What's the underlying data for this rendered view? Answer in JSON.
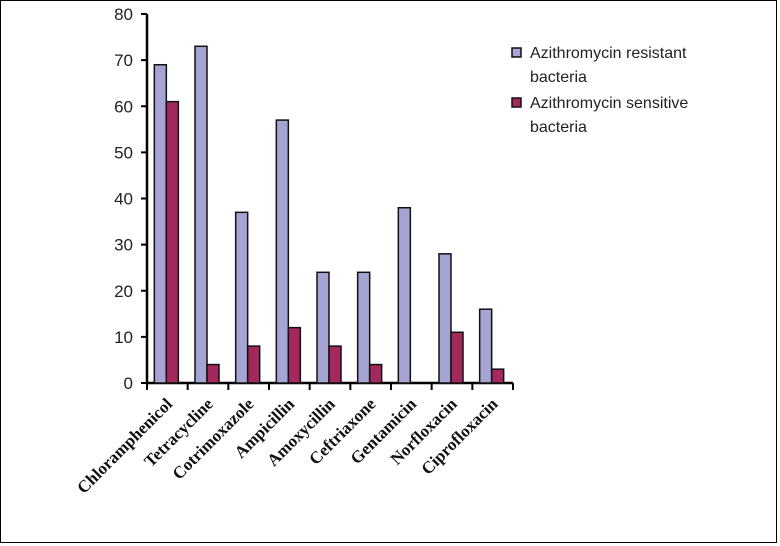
{
  "chart_data": {
    "type": "bar",
    "title": "",
    "xlabel": "",
    "ylabel": "",
    "categories": [
      "Chloramphenicol",
      "Tetracycline",
      "Cotrimoxazole",
      "Ampicillin",
      "Amoxycillin",
      "Ceftriaxone",
      "Gentamicin",
      "Norfloxacin",
      "Ciprofloxacin"
    ],
    "series": [
      {
        "name": "Azithromycin resistant bacteria",
        "legend_lines": [
          "Azithromycin resistant",
          "bacteria"
        ],
        "color": "#a6a4d2",
        "values": [
          69,
          73,
          37,
          57,
          24,
          24,
          38,
          28,
          16
        ]
      },
      {
        "name": "Azithromycin sensitive bacteria",
        "legend_lines": [
          "Azithromycin sensitive",
          "bacteria"
        ],
        "color": "#a3285c",
        "values": [
          61,
          4,
          8,
          12,
          8,
          4,
          0,
          11,
          3
        ]
      }
    ],
    "ylim": [
      0,
      80
    ],
    "yticks": [
      0,
      10,
      20,
      30,
      40,
      50,
      60,
      70,
      80
    ],
    "grid": false,
    "legend": "right"
  }
}
